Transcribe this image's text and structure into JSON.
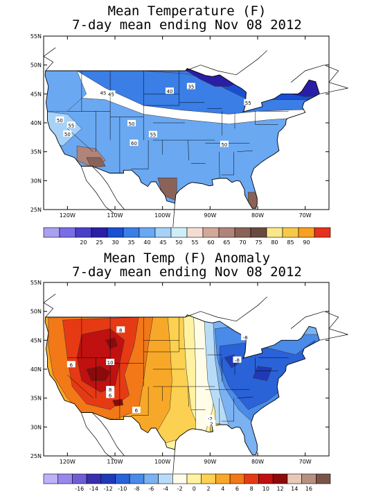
{
  "maps": [
    {
      "title_line1": "Mean Temperature (F)",
      "title_line2": "7-day mean ending Nov 08 2012",
      "lat_labels": [
        "55N",
        "50N",
        "45N",
        "40N",
        "35N",
        "30N",
        "25N"
      ],
      "lon_labels": [
        "120W",
        "110W",
        "100W",
        "90W",
        "80W",
        "70W"
      ],
      "contour_labels": [
        "50",
        "55",
        "50",
        "45",
        "45",
        "50",
        "40",
        "35",
        "55",
        "55",
        "60",
        "50"
      ],
      "legend_ticks": [
        "20",
        "25",
        "30",
        "35",
        "40",
        "45",
        "50",
        "55",
        "60",
        "65",
        "70",
        "75",
        "80",
        "85",
        "90"
      ],
      "legend_colors": [
        "#a8a0f0",
        "#7a6ee6",
        "#4a3fc8",
        "#2a1ea6",
        "#1a4fd4",
        "#3a7ee6",
        "#6aa8f2",
        "#a6d2f8",
        "#d0eef8",
        "#f4dcd0",
        "#d2a898",
        "#b08478",
        "#8a6258",
        "#6a4a40",
        "#f8e888",
        "#f8c84a",
        "#f8a020",
        "#e63020"
      ]
    },
    {
      "title_line1": "Mean Temp (F) Anomaly",
      "title_line2": "7-day mean ending Nov 08 2012",
      "lat_labels": [
        "55N",
        "50N",
        "45N",
        "40N",
        "35N",
        "30N",
        "25N"
      ],
      "lon_labels": [
        "120W",
        "110W",
        "100W",
        "90W",
        "80W",
        "70W"
      ],
      "contour_labels": [
        "8",
        "6",
        "10",
        "8",
        "6",
        "6",
        "-8",
        "-8",
        "-2",
        "2"
      ],
      "legend_ticks": [
        "-16",
        "-14",
        "-12",
        "-10",
        "-8",
        "-6",
        "-4",
        "-2",
        "0",
        "2",
        "4",
        "6",
        "8",
        "10",
        "12",
        "14",
        "16"
      ],
      "legend_colors": [
        "#c0b0f8",
        "#9888ec",
        "#6e5ed6",
        "#3a2eb0",
        "#1e3ab8",
        "#2a62d8",
        "#4a8ae8",
        "#7ab2f2",
        "#b8dcf8",
        "#fffde8",
        "#fff2a0",
        "#fcd050",
        "#f8a828",
        "#f27818",
        "#e63a14",
        "#c01010",
        "#8c0a0a",
        "#e8c8b8",
        "#b89080",
        "#7a5448"
      ]
    }
  ]
}
